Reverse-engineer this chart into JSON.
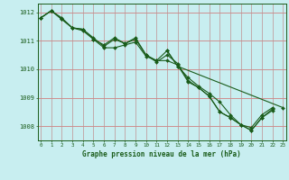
{
  "title": "Graphe pression niveau de la mer (hPa)",
  "background_color": "#c8eef0",
  "grid_color_h": "#d08080",
  "grid_color_v": "#c09090",
  "line_color": "#1a5c1a",
  "marker_color": "#1a5c1a",
  "xlim": [
    -0.3,
    23.3
  ],
  "ylim": [
    1007.5,
    1012.3
  ],
  "yticks": [
    1008,
    1009,
    1010,
    1011,
    1012
  ],
  "xticks": [
    0,
    1,
    2,
    3,
    4,
    5,
    6,
    7,
    8,
    9,
    10,
    11,
    12,
    13,
    14,
    15,
    16,
    17,
    18,
    19,
    20,
    21,
    22,
    23
  ],
  "series": [
    [
      1011.8,
      1012.05,
      1011.75,
      1011.45,
      1011.4,
      1011.1,
      1010.8,
      1011.05,
      1010.9,
      1011.1,
      1010.5,
      1010.3,
      1010.65,
      1010.1,
      1009.7,
      1009.4,
      1009.15,
      1008.85,
      1008.4,
      1008.05,
      1007.95,
      1008.4,
      1008.65,
      null
    ],
    [
      1011.8,
      1012.05,
      1011.8,
      1011.45,
      1011.4,
      1011.05,
      1010.85,
      1011.1,
      1010.9,
      1011.05,
      1010.5,
      1010.25,
      1010.5,
      1010.2,
      1009.6,
      1009.35,
      1009.05,
      1008.5,
      1008.3,
      1008.05,
      1007.85,
      1008.3,
      1008.55,
      null
    ],
    [
      1011.8,
      1012.05,
      1011.75,
      1011.45,
      1011.35,
      1011.05,
      1010.75,
      1010.75,
      1010.85,
      1010.95,
      1010.45,
      1010.3,
      1010.3,
      1010.15,
      1009.55,
      1009.35,
      1009.05,
      1008.5,
      1008.3,
      1008.05,
      1007.85,
      1008.3,
      1008.6,
      null
    ],
    [
      null,
      null,
      null,
      null,
      null,
      null,
      null,
      null,
      null,
      null,
      null,
      null,
      1010.65,
      1010.1,
      null,
      null,
      null,
      null,
      null,
      null,
      null,
      null,
      null,
      1008.65
    ]
  ]
}
